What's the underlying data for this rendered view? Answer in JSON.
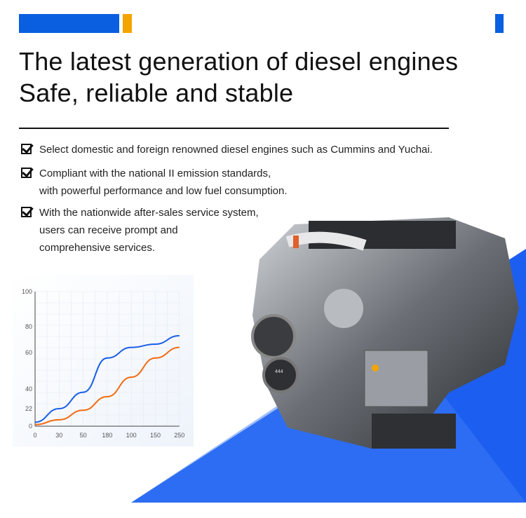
{
  "colors": {
    "accent_blue": "#0a5fe0",
    "accent_orange": "#f5a300",
    "series_blue": "#1a5fe8",
    "series_orange": "#f26a10"
  },
  "headline": {
    "line1": "The latest generation of diesel engines",
    "line2": "Safe, reliable and stable"
  },
  "features": [
    {
      "icon": "checkbox-checked-icon",
      "lines": [
        "Select domestic and foreign renowned diesel engines such as Cummins and Yuchai."
      ]
    },
    {
      "icon": "checkbox-checked-icon",
      "lines": [
        "Compliant with the national II emission standards,",
        "with powerful performance and low fuel consumption."
      ]
    },
    {
      "icon": "checkbox-checked-icon",
      "lines": [
        "With the nationwide after-sales service system,",
        "users can receive prompt and",
        "comprehensive services."
      ]
    }
  ],
  "engine_badge": "444",
  "chart_data": {
    "type": "line",
    "title": "",
    "xlabel": "",
    "ylabel": "",
    "categories": [
      "0",
      "30",
      "50",
      "180",
      "100",
      "150",
      "250"
    ],
    "y_ticks": [
      "0",
      "22",
      "40",
      "60",
      "80",
      "100"
    ],
    "grid": true,
    "series": [
      {
        "color": "#1a5fe8",
        "values": [
          5,
          22,
          37,
          57,
          64,
          66.5,
          73
        ]
      },
      {
        "color": "#f26a10",
        "values": [
          2,
          8,
          20,
          33,
          46.5,
          57,
          64
        ]
      }
    ]
  }
}
